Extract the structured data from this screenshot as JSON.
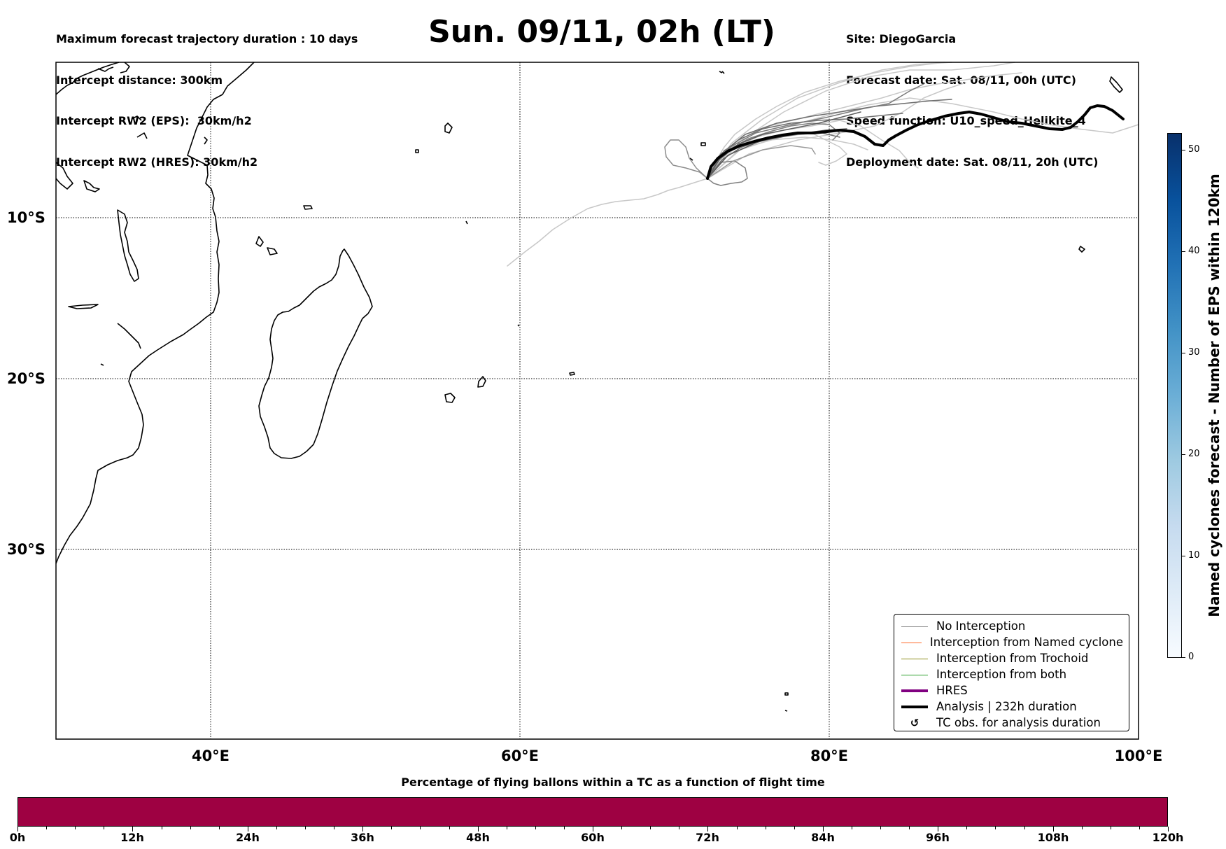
{
  "header": {
    "left_lines": [
      "Maximum forecast trajectory duration : 10 days",
      "Intercept distance: 300km",
      "Intercept RW2 (EPS):  30km/h2",
      "Intercept RW2 (HRES): 30km/h2"
    ],
    "title": "Sun. 09/11, 02h (LT)",
    "right_lines": [
      "Site: DiegoGarcia",
      "Forecast date: Sat. 08/11, 00h (UTC)",
      "Speed function: U10_speed_Helikite_4",
      "Deployment date: Sat. 08/11, 20h (UTC)"
    ]
  },
  "map": {
    "lat_labels": [
      "10°S",
      "20°S",
      "30°S"
    ],
    "lon_labels": [
      "40°E",
      "60°E",
      "80°E",
      "100°E"
    ],
    "coastline_color": "#000000",
    "grid": "dotted"
  },
  "legend": {
    "items": [
      {
        "label": "No Interception",
        "color": "#808080",
        "style": "thin-line"
      },
      {
        "label": "Interception from Named cyclone",
        "color": "#ff6a2b",
        "style": "thin-line"
      },
      {
        "label": "Interception from Trochoid",
        "color": "#8c8c1a",
        "style": "thin-line"
      },
      {
        "label": "Interception from both",
        "color": "#2ca02c",
        "style": "thin-line"
      },
      {
        "label": "HRES",
        "color": "#800080",
        "style": "thick-line"
      },
      {
        "label": "Analysis | 232h duration",
        "color": "#000000",
        "style": "thick-line"
      },
      {
        "label": "TC obs. for analysis duration",
        "color": "#000000",
        "style": "glyph",
        "glyph": "↺"
      }
    ]
  },
  "colorbar_right": {
    "title": "Named cyclones forecast - Number of EPS within 120km",
    "ticks": [
      "0",
      "10",
      "20",
      "30",
      "40",
      "50"
    ],
    "colormap": [
      "#f7fbff",
      "#08306b"
    ]
  },
  "colorbar_bottom": {
    "title": "Percentage of flying ballons within a TC as a function of flight time",
    "color": "#9e0142",
    "ticks": [
      "0h",
      "12h",
      "24h",
      "36h",
      "48h",
      "60h",
      "72h",
      "84h",
      "96h",
      "108h",
      "120h"
    ]
  }
}
